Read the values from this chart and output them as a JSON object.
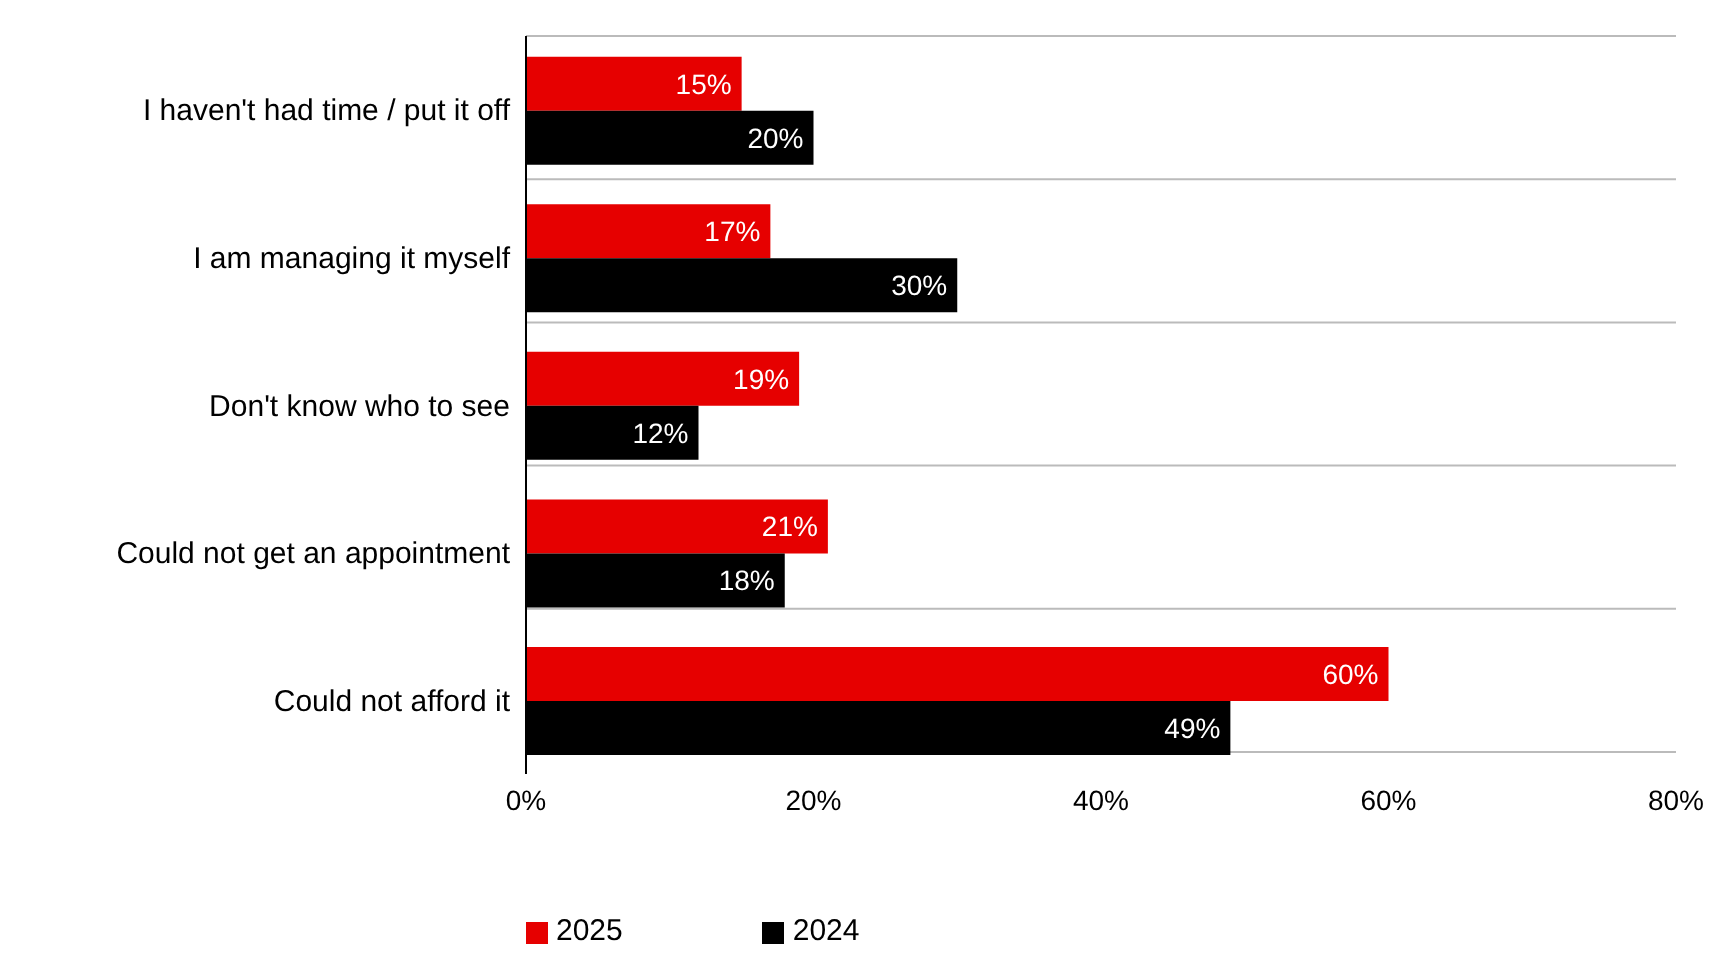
{
  "chart_data": {
    "type": "bar",
    "orientation": "horizontal",
    "categories": [
      "I haven't had time / put it off",
      "I am managing it myself",
      "Don't know who to see",
      "Could not get an appointment",
      "Could not afford it"
    ],
    "series": [
      {
        "name": "2025",
        "color": "#e60000",
        "values": [
          15,
          17,
          19,
          21,
          60
        ],
        "value_labels": [
          "15%",
          "17%",
          "19%",
          "21%",
          "60%"
        ]
      },
      {
        "name": "2024",
        "color": "#000000",
        "values": [
          20,
          30,
          12,
          18,
          49
        ],
        "value_labels": [
          "20%",
          "30%",
          "12%",
          "18%",
          "49%"
        ]
      }
    ],
    "xlim": [
      0,
      80
    ],
    "xticks": [
      {
        "value": 0,
        "label": "0%"
      },
      {
        "value": 20,
        "label": "20%"
      },
      {
        "value": 40,
        "label": "40%"
      },
      {
        "value": 60,
        "label": "60%"
      },
      {
        "value": 80,
        "label": "80%"
      }
    ],
    "grid": "y",
    "legend": "bottom"
  }
}
